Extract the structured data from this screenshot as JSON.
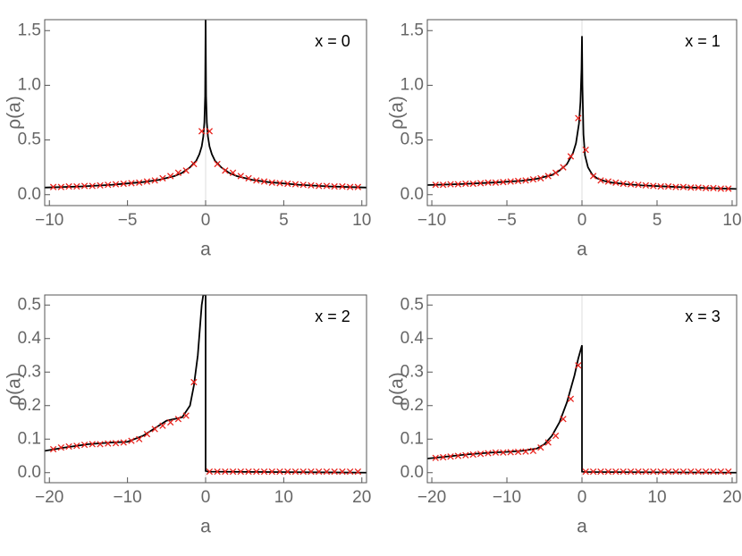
{
  "chart_data": [
    {
      "type": "line",
      "annotation": "x = 0",
      "xlabel": "a",
      "ylabel": "ρ(a)",
      "xlim": [
        -10.3,
        10.3
      ],
      "ylim": [
        -0.1,
        1.6
      ],
      "xticks": [
        {
          "value": -10,
          "label": "−10"
        },
        {
          "value": -5,
          "label": "−5"
        },
        0,
        5,
        10
      ],
      "yticks": [
        {
          "value": 0,
          "label": "0.0"
        },
        0.5,
        {
          "value": 1,
          "label": "1.0"
        },
        1.5
      ],
      "series": [
        {
          "color": "#000000",
          "x": [
            -10.3,
            -8,
            -6,
            -4,
            -3,
            -2,
            -1.5,
            -1,
            -0.6,
            -0.4,
            -0.25,
            -0.15,
            -0.08,
            -0.03,
            0,
            0.03,
            0.08,
            0.15,
            0.25,
            0.4,
            0.6,
            1,
            1.5,
            2,
            3,
            4,
            6,
            8,
            10.3
          ],
          "values": [
            0.065,
            0.075,
            0.09,
            0.115,
            0.135,
            0.17,
            0.2,
            0.25,
            0.31,
            0.37,
            0.44,
            0.53,
            0.66,
            0.9,
            1.6,
            0.9,
            0.66,
            0.53,
            0.44,
            0.37,
            0.31,
            0.25,
            0.2,
            0.17,
            0.135,
            0.115,
            0.09,
            0.075,
            0.065
          ]
        },
        {
          "color": "#e8221c",
          "marker": "x",
          "x": [
            -9.75,
            -9.25,
            -8.75,
            -8.25,
            -7.75,
            -7.25,
            -6.75,
            -6.25,
            -5.75,
            -5.25,
            -4.75,
            -4.25,
            -3.75,
            -3.25,
            -2.75,
            -2.25,
            -1.75,
            -1.25,
            -0.75,
            -0.25,
            0.25,
            0.75,
            1.25,
            1.75,
            2.25,
            2.75,
            3.25,
            3.75,
            4.25,
            4.75,
            5.25,
            5.75,
            6.25,
            6.75,
            7.25,
            7.75,
            8.25,
            8.75,
            9.25,
            9.75
          ],
          "values": [
            0.07,
            0.07,
            0.075,
            0.075,
            0.08,
            0.08,
            0.085,
            0.09,
            0.095,
            0.1,
            0.105,
            0.11,
            0.12,
            0.13,
            0.15,
            0.17,
            0.2,
            0.22,
            0.28,
            0.58,
            0.58,
            0.28,
            0.22,
            0.2,
            0.17,
            0.15,
            0.13,
            0.12,
            0.11,
            0.105,
            0.1,
            0.095,
            0.09,
            0.085,
            0.08,
            0.08,
            0.075,
            0.075,
            0.07,
            0.07
          ]
        }
      ]
    },
    {
      "type": "line",
      "annotation": "x = 1",
      "xlabel": "a",
      "ylabel": "ρ(a)",
      "xlim": [
        -10.3,
        10.3
      ],
      "ylim": [
        -0.1,
        1.6
      ],
      "xticks": [
        {
          "value": -10,
          "label": "−10"
        },
        {
          "value": -5,
          "label": "−5"
        },
        0,
        5,
        10
      ],
      "yticks": [
        {
          "value": 0,
          "label": "0.0"
        },
        0.5,
        {
          "value": 1,
          "label": "1.0"
        },
        1.5
      ],
      "series": [
        {
          "color": "#000000",
          "x": [
            -10.3,
            -8,
            -6,
            -4,
            -3,
            -2,
            -1.5,
            -1,
            -0.6,
            -0.4,
            -0.2,
            -0.1,
            -0.03,
            0,
            0.03,
            0.1,
            0.2,
            0.4,
            0.7,
            1,
            1.5,
            2,
            3,
            4,
            6,
            8,
            10.3
          ],
          "values": [
            0.088,
            0.097,
            0.11,
            0.127,
            0.145,
            0.18,
            0.22,
            0.28,
            0.38,
            0.47,
            0.65,
            0.85,
            1.15,
            1.45,
            1.0,
            0.55,
            0.36,
            0.25,
            0.18,
            0.15,
            0.125,
            0.11,
            0.095,
            0.085,
            0.072,
            0.062,
            0.052
          ]
        },
        {
          "color": "#e8221c",
          "marker": "x",
          "x": [
            -9.75,
            -9.25,
            -8.75,
            -8.25,
            -7.75,
            -7.25,
            -6.75,
            -6.25,
            -5.75,
            -5.25,
            -4.75,
            -4.25,
            -3.75,
            -3.25,
            -2.75,
            -2.25,
            -1.75,
            -1.25,
            -0.75,
            -0.25,
            0.25,
            0.75,
            1.25,
            1.75,
            2.25,
            2.75,
            3.25,
            3.75,
            4.25,
            4.75,
            5.25,
            5.75,
            6.25,
            6.75,
            7.25,
            7.75,
            8.25,
            8.75,
            9.25,
            9.75
          ],
          "values": [
            0.09,
            0.09,
            0.095,
            0.095,
            0.1,
            0.1,
            0.105,
            0.11,
            0.11,
            0.115,
            0.12,
            0.125,
            0.13,
            0.14,
            0.15,
            0.17,
            0.2,
            0.25,
            0.35,
            0.7,
            0.41,
            0.17,
            0.13,
            0.12,
            0.11,
            0.1,
            0.095,
            0.09,
            0.085,
            0.08,
            0.075,
            0.075,
            0.07,
            0.07,
            0.065,
            0.065,
            0.06,
            0.06,
            0.055,
            0.055
          ]
        }
      ]
    },
    {
      "type": "line",
      "annotation": "x = 2",
      "xlabel": "a",
      "ylabel": "ρ(a)",
      "xlim": [
        -20.6,
        20.6
      ],
      "ylim": [
        -0.03,
        0.53
      ],
      "xticks": [
        {
          "value": -20,
          "label": "−20"
        },
        {
          "value": -10,
          "label": "−10"
        },
        0,
        10,
        20
      ],
      "yticks": [
        {
          "value": 0,
          "label": "0.0"
        },
        0.1,
        0.2,
        0.3,
        0.4,
        0.5
      ],
      "series": [
        {
          "color": "#000000",
          "x": [
            -20.6,
            -18,
            -15,
            -12,
            -10,
            -8,
            -6,
            -5,
            -4,
            -3,
            -2,
            -1.5,
            -1,
            -0.5,
            -0.3,
            0,
            0,
            0.3,
            20.6
          ],
          "values": [
            0.065,
            0.075,
            0.085,
            0.09,
            0.092,
            0.11,
            0.14,
            0.155,
            0.16,
            0.165,
            0.2,
            0.26,
            0.35,
            0.5,
            0.53,
            0.53,
            0.005,
            0.003,
            0.0
          ]
        },
        {
          "color": "#e8221c",
          "marker": "x",
          "x": [
            -19.5,
            -18.5,
            -17.5,
            -16.5,
            -15.5,
            -14.5,
            -13.5,
            -12.5,
            -11.5,
            -10.5,
            -9.5,
            -8.5,
            -7.5,
            -6.5,
            -5.5,
            -4.5,
            -3.5,
            -2.5,
            -1.5,
            0.5,
            1.5,
            2.5,
            3.5,
            4.5,
            5.5,
            6.5,
            7.5,
            8.5,
            9.5,
            10.5,
            11.5,
            12.5,
            13.5,
            14.5,
            15.5,
            16.5,
            17.5,
            18.5,
            19.5
          ],
          "values": [
            0.07,
            0.075,
            0.078,
            0.08,
            0.083,
            0.085,
            0.085,
            0.087,
            0.088,
            0.09,
            0.095,
            0.1,
            0.115,
            0.13,
            0.14,
            0.15,
            0.16,
            0.17,
            0.27,
            0.003,
            0.003,
            0.003,
            0.003,
            0.003,
            0.003,
            0.003,
            0.003,
            0.003,
            0.003,
            0.003,
            0.003,
            0.003,
            0.003,
            0.003,
            0.003,
            0.003,
            0.003,
            0.003,
            0.003
          ]
        }
      ]
    },
    {
      "type": "line",
      "annotation": "x = 3",
      "xlabel": "a",
      "ylabel": "ρ(a)",
      "xlim": [
        -20.6,
        20.6
      ],
      "ylim": [
        -0.03,
        0.53
      ],
      "xticks": [
        {
          "value": -20,
          "label": "−20"
        },
        {
          "value": -10,
          "label": "−10"
        },
        0,
        10,
        20
      ],
      "yticks": [
        {
          "value": 0,
          "label": "0.0"
        },
        0.1,
        0.2,
        0.3,
        0.4,
        0.5
      ],
      "series": [
        {
          "color": "#000000",
          "x": [
            -20.6,
            -18,
            -15,
            -12,
            -10,
            -8,
            -6,
            -5,
            -4,
            -3,
            -2,
            -1,
            -0.5,
            0,
            0,
            0.3,
            20.6
          ],
          "values": [
            0.042,
            0.048,
            0.055,
            0.06,
            0.062,
            0.065,
            0.072,
            0.085,
            0.11,
            0.15,
            0.21,
            0.29,
            0.34,
            0.38,
            0.003,
            0.002,
            0.0
          ]
        },
        {
          "color": "#e8221c",
          "marker": "x",
          "x": [
            -19.5,
            -18.5,
            -17.5,
            -16.5,
            -15.5,
            -14.5,
            -13.5,
            -12.5,
            -11.5,
            -10.5,
            -9.5,
            -8.5,
            -7.5,
            -6.5,
            -5.5,
            -4.5,
            -3.5,
            -2.5,
            -1.5,
            -0.5,
            0.5,
            1.5,
            2.5,
            3.5,
            4.5,
            5.5,
            6.5,
            7.5,
            8.5,
            9.5,
            10.5,
            11.5,
            12.5,
            13.5,
            14.5,
            15.5,
            16.5,
            17.5,
            18.5,
            19.5
          ],
          "values": [
            0.044,
            0.046,
            0.048,
            0.05,
            0.052,
            0.054,
            0.056,
            0.058,
            0.06,
            0.06,
            0.061,
            0.062,
            0.063,
            0.065,
            0.075,
            0.09,
            0.11,
            0.16,
            0.22,
            0.32,
            0.003,
            0.003,
            0.003,
            0.003,
            0.003,
            0.003,
            0.003,
            0.003,
            0.003,
            0.003,
            0.003,
            0.003,
            0.003,
            0.003,
            0.003,
            0.003,
            0.003,
            0.003,
            0.003,
            0.003
          ]
        }
      ]
    }
  ]
}
